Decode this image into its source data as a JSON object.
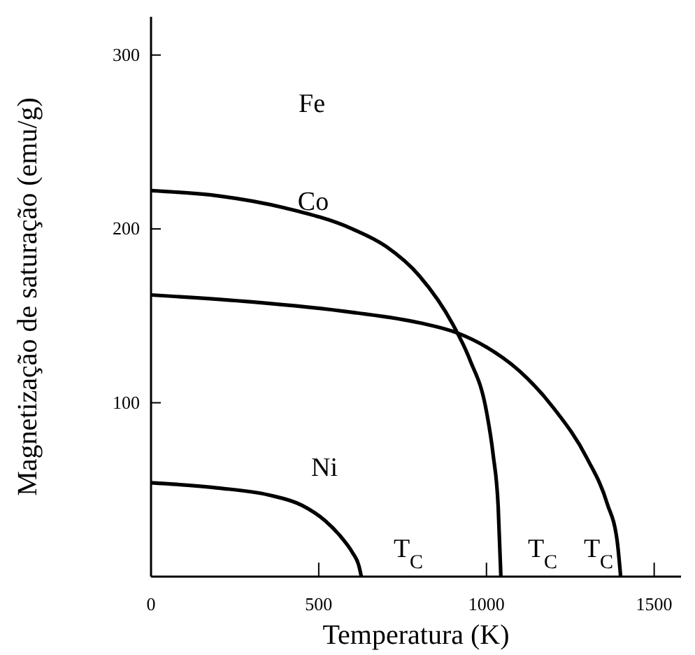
{
  "chart_data": {
    "type": "line",
    "xlabel": "Temperatura (K)",
    "ylabel": "Magnetização de saturação (emu/g)",
    "xlim": [
      0,
      1580
    ],
    "ylim": [
      0,
      322
    ],
    "xticks": [
      0,
      500,
      1000,
      1500
    ],
    "yticks": [
      {
        "value": 0,
        "label": null
      },
      100,
      200,
      300
    ],
    "grid": false,
    "marker": "none",
    "line_style": "solid",
    "series": [
      {
        "color": "#000000",
        "x": [
          0,
          200,
          400,
          600,
          700,
          800,
          900,
          950,
          1000,
          1020,
          1035,
          1043
        ],
        "values": [
          222,
          219,
          212,
          200,
          190,
          173,
          145,
          125,
          95,
          70,
          40,
          0
        ]
      },
      {
        "color": "#000000",
        "x": [
          0,
          300,
          600,
          800,
          915,
          1000,
          1100,
          1200,
          1300,
          1360,
          1390,
          1400
        ],
        "values": [
          162,
          158,
          152,
          146,
          140,
          132,
          118,
          97,
          68,
          42,
          20,
          0
        ]
      },
      {
        "color": "#000000",
        "x": [
          0,
          200,
          350,
          450,
          520,
          570,
          600,
          620,
          627
        ],
        "values": [
          54,
          51,
          47,
          41,
          32,
          22,
          14,
          6,
          0
        ]
      }
    ],
    "annotations": [
      "Fe",
      "Co",
      "Ni",
      "T$_{C}$",
      "T$_{C}$",
      "T$_{C}$"
    ]
  }
}
